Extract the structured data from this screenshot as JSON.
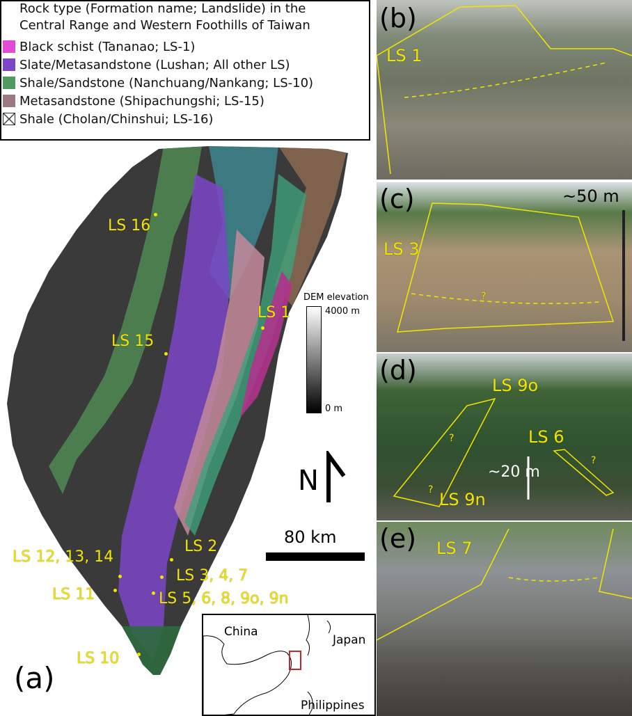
{
  "legend": {
    "title_line1": "Rock type (Formation name; Landslide) in the",
    "title_line2": "Central Range and Western Foothills of Taiwan",
    "items": [
      {
        "label": "Black schist (Tananao; LS-1)",
        "color": "#e04bd8"
      },
      {
        "label": "Slate/Metasandstone (Lushan; All other LS)",
        "color": "#7b47c7"
      },
      {
        "label": "Shale/Sandstone (Nanchuang/Nankang; LS-10)",
        "color": "#4f9a63"
      },
      {
        "label": "Metasandstone (Shipachungshi; LS-15)",
        "color": "#9a7a80"
      },
      {
        "label": "Shale (Cholan/Chinshui; LS-16)",
        "color": "#ffffff"
      }
    ]
  },
  "map": {
    "landslides": [
      "LS 16",
      "LS 1",
      "LS 15",
      "LS 2",
      "LS 12, 13, 14",
      "LS 3, 4, 7",
      "LS 11",
      "LS 5, 6, 8, 9o, 9n",
      "LS 10"
    ],
    "dem": {
      "title": "DEM elevation",
      "max": "4000 m",
      "min": "0 m"
    },
    "north": "N",
    "scale": "80 km",
    "inset": {
      "china": "China",
      "japan": "Japan",
      "philippines": "Philippines"
    },
    "panel_label": "(a)"
  },
  "photos": [
    {
      "panel": "(b)",
      "labels": [
        "LS 1"
      ]
    },
    {
      "panel": "(c)",
      "labels": [
        "LS 3",
        "~50 m",
        "?"
      ]
    },
    {
      "panel": "(d)",
      "labels": [
        "LS 9o",
        "LS 6",
        "~20 m",
        "LS 9n",
        "?",
        "?",
        "?"
      ]
    },
    {
      "panel": "(e)",
      "labels": [
        "LS 7"
      ]
    }
  ]
}
